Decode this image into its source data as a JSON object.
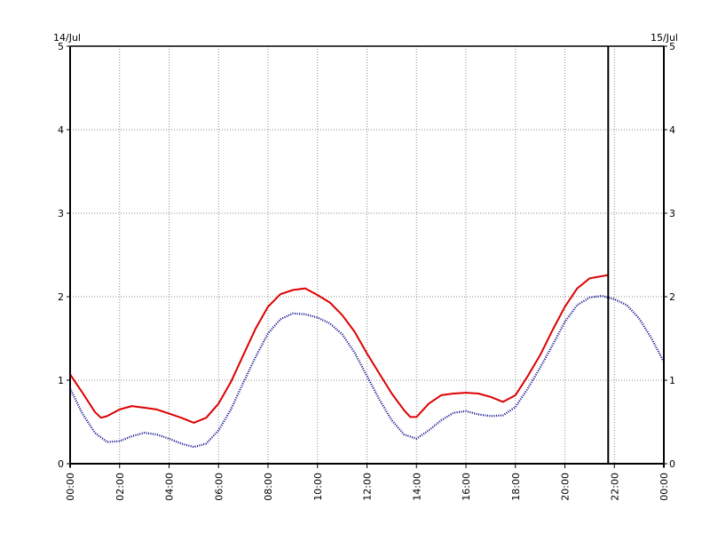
{
  "chart_data": {
    "type": "line",
    "title": "",
    "xlabel": "",
    "ylabel": "",
    "date_left": "14/Jul",
    "date_right": "15/Jul",
    "xlim": [
      0,
      24
    ],
    "ylim": [
      0,
      5
    ],
    "x_tick_labels": [
      "00:00",
      "02:00",
      "04:00",
      "06:00",
      "08:00",
      "10:00",
      "12:00",
      "14:00",
      "16:00",
      "18:00",
      "20:00",
      "22:00",
      "00:00"
    ],
    "y_tick_labels": [
      "0",
      "1",
      "2",
      "3",
      "4",
      "5"
    ],
    "grid": true,
    "current_time_marker_hour": 21.75,
    "series": [
      {
        "color": "#dd0000",
        "style": "solid",
        "x": [
          0,
          0.5,
          1,
          1.25,
          1.5,
          2,
          2.5,
          3,
          3.5,
          4,
          4.5,
          5,
          5.5,
          6,
          6.5,
          7,
          7.5,
          8,
          8.5,
          9,
          9.5,
          10,
          10.5,
          11,
          11.5,
          12,
          12.5,
          13,
          13.5,
          13.75,
          14,
          14.5,
          15,
          15.5,
          16,
          16.5,
          17,
          17.5,
          18,
          18.5,
          19,
          19.5,
          20,
          20.5,
          21,
          21.75
        ],
        "y": [
          1.07,
          0.85,
          0.62,
          0.55,
          0.57,
          0.65,
          0.69,
          0.67,
          0.65,
          0.6,
          0.55,
          0.49,
          0.55,
          0.72,
          0.98,
          1.3,
          1.62,
          1.88,
          2.03,
          2.08,
          2.1,
          2.02,
          1.93,
          1.78,
          1.58,
          1.32,
          1.08,
          0.84,
          0.64,
          0.56,
          0.56,
          0.72,
          0.82,
          0.84,
          0.85,
          0.84,
          0.8,
          0.74,
          0.82,
          1.05,
          1.3,
          1.6,
          1.88,
          2.1,
          2.22,
          2.26
        ]
      },
      {
        "color": "#000088",
        "style": "dotted",
        "x": [
          0,
          0.5,
          1,
          1.5,
          2,
          2.5,
          3,
          3.5,
          4,
          4.5,
          5,
          5.5,
          6,
          6.5,
          7,
          7.5,
          8,
          8.5,
          9,
          9.5,
          10,
          10.5,
          11,
          11.5,
          12,
          12.5,
          13,
          13.5,
          14,
          14.5,
          15,
          15.5,
          16,
          16.5,
          17,
          17.5,
          18,
          18.5,
          19,
          19.5,
          20,
          20.5,
          21,
          21.5,
          22,
          22.5,
          23,
          23.5,
          24
        ],
        "y": [
          0.9,
          0.6,
          0.37,
          0.26,
          0.27,
          0.33,
          0.37,
          0.35,
          0.3,
          0.24,
          0.2,
          0.24,
          0.4,
          0.65,
          0.97,
          1.28,
          1.56,
          1.73,
          1.8,
          1.79,
          1.75,
          1.68,
          1.55,
          1.33,
          1.05,
          0.77,
          0.52,
          0.35,
          0.3,
          0.4,
          0.52,
          0.61,
          0.63,
          0.59,
          0.57,
          0.58,
          0.68,
          0.9,
          1.15,
          1.42,
          1.7,
          1.9,
          1.99,
          2.01,
          1.97,
          1.9,
          1.74,
          1.5,
          1.22
        ]
      }
    ]
  }
}
